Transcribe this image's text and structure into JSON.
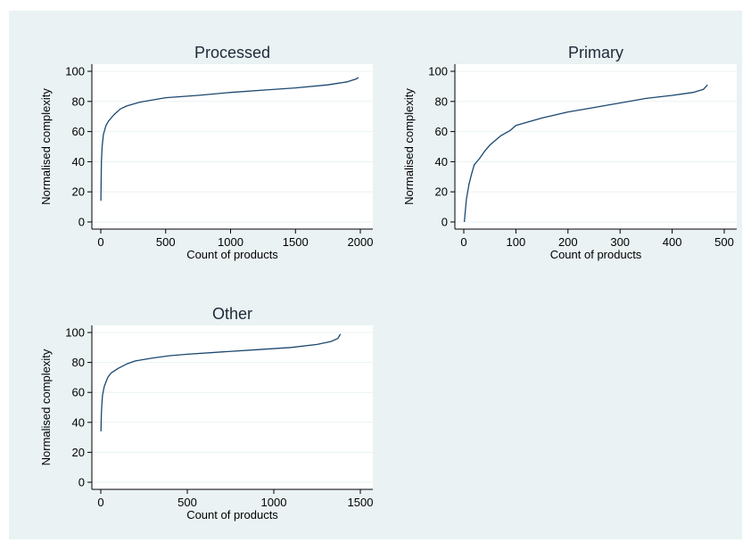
{
  "figure": {
    "background": "#eaf2f3",
    "plot_background": "#ffffff",
    "line_color": "#1a476f",
    "grid_color": "#eaf2f3"
  },
  "chart_data": [
    {
      "type": "line",
      "title": "Processed",
      "xlabel": "Count of products",
      "ylabel": "Normalised complexity",
      "xlim": [
        0,
        2000
      ],
      "ylim": [
        0,
        100
      ],
      "xticks": [
        0,
        500,
        1000,
        1500,
        2000
      ],
      "yticks": [
        0,
        20,
        40,
        60,
        80,
        100
      ],
      "grid": true,
      "series": [
        {
          "x": [
            1,
            5,
            10,
            20,
            40,
            60,
            100,
            150,
            200,
            300,
            400,
            500,
            750,
            1000,
            1250,
            1500,
            1750,
            1900,
            1970,
            1985
          ],
          "y": [
            14,
            40,
            50,
            58,
            64,
            67,
            71,
            75,
            77,
            79.5,
            81,
            82.5,
            84,
            86,
            87.5,
            89,
            91,
            93,
            95,
            96
          ]
        }
      ]
    },
    {
      "type": "line",
      "title": "Primary",
      "xlabel": "Count of products",
      "ylabel": "Normalised complexity",
      "xlim": [
        0,
        500
      ],
      "ylim": [
        0,
        100
      ],
      "xticks": [
        0,
        100,
        200,
        300,
        400,
        500
      ],
      "yticks": [
        0,
        20,
        40,
        60,
        80,
        100
      ],
      "grid": true,
      "series": [
        {
          "x": [
            1,
            3,
            5,
            10,
            15,
            20,
            30,
            40,
            50,
            70,
            90,
            100,
            150,
            200,
            250,
            300,
            350,
            400,
            440,
            460,
            468
          ],
          "y": [
            0,
            8,
            15,
            25,
            32,
            38,
            42,
            47,
            51,
            57,
            61,
            64,
            69,
            73,
            76,
            79,
            82,
            84,
            86,
            88,
            91
          ]
        }
      ]
    },
    {
      "type": "line",
      "title": "Other",
      "xlabel": "Count of products",
      "ylabel": "Normalised complexity",
      "xlim": [
        0,
        1500
      ],
      "ylim": [
        0,
        100
      ],
      "xticks": [
        0,
        500,
        1000,
        1500
      ],
      "yticks": [
        0,
        20,
        40,
        60,
        80,
        100
      ],
      "grid": true,
      "series": [
        {
          "x": [
            1,
            3,
            6,
            10,
            20,
            40,
            60,
            100,
            150,
            200,
            300,
            400,
            500,
            700,
            900,
            1100,
            1250,
            1330,
            1370,
            1385
          ],
          "y": [
            34,
            45,
            52,
            58,
            64,
            70,
            73,
            76,
            79,
            81,
            83,
            84.5,
            85.5,
            87,
            88.5,
            90,
            92,
            94,
            96,
            99
          ]
        }
      ]
    }
  ]
}
